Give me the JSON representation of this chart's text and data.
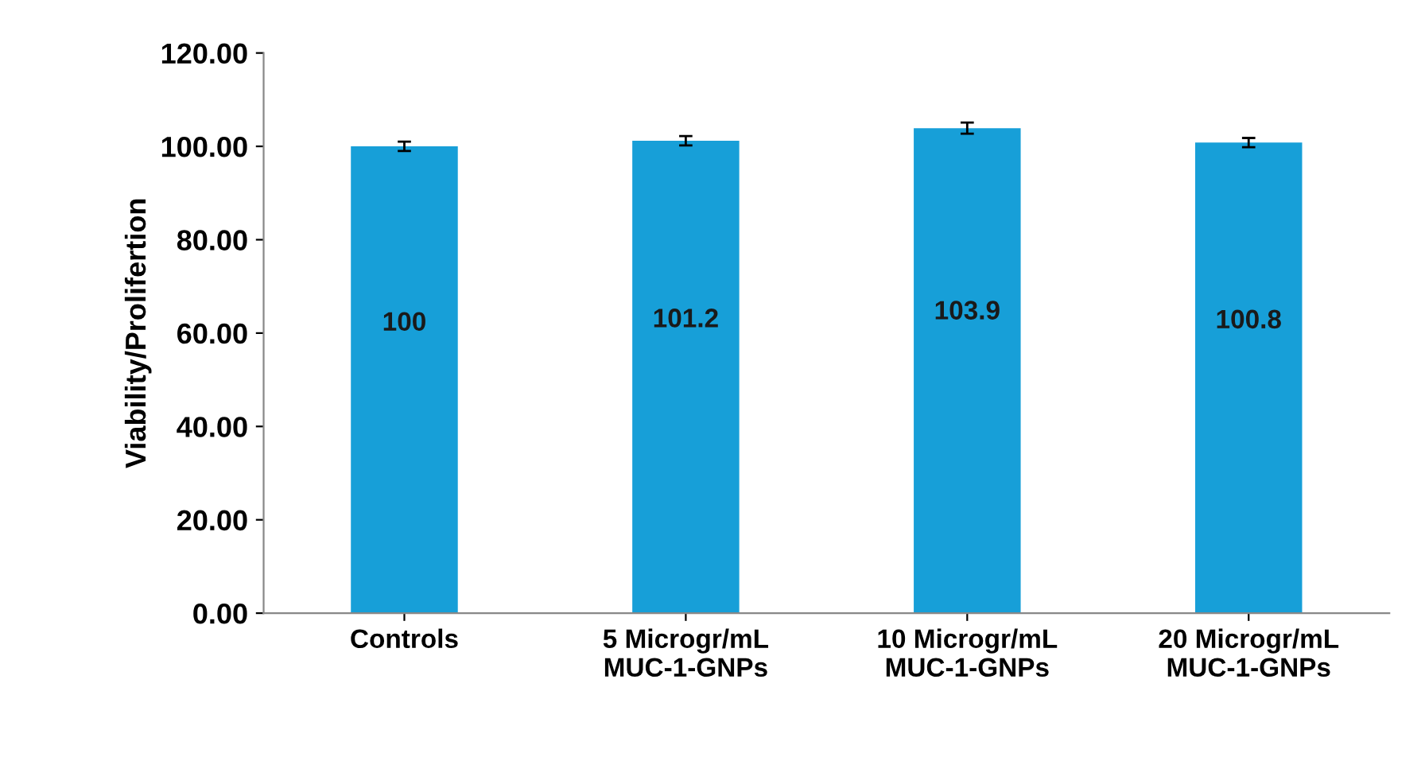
{
  "chart_data": {
    "type": "bar",
    "ylabel": "Viability/Prolifertion",
    "categories": [
      "Controls",
      "5 Microgr/mL\nMUC-1-GNPs",
      "10 Microgr/mL\nMUC-1-GNPs",
      "20 Microgr/mL\nMUC-1-GNPs"
    ],
    "values": [
      100,
      101.2,
      103.9,
      100.8
    ],
    "errors": [
      1.0,
      1.0,
      1.2,
      1.0
    ],
    "color": "#179fd8",
    "ylim": [
      0,
      120
    ],
    "yticks": [
      {
        "value": 0,
        "label": "0.00"
      },
      {
        "value": 20,
        "label": "20.00"
      },
      {
        "value": 40,
        "label": "40.00"
      },
      {
        "value": 60,
        "label": "60.00"
      },
      {
        "value": 80,
        "label": "80.00"
      },
      {
        "value": 100,
        "label": "100.00"
      },
      {
        "value": 120,
        "label": "120.00"
      }
    ],
    "data_labels": true,
    "grid": false,
    "legend": false
  }
}
